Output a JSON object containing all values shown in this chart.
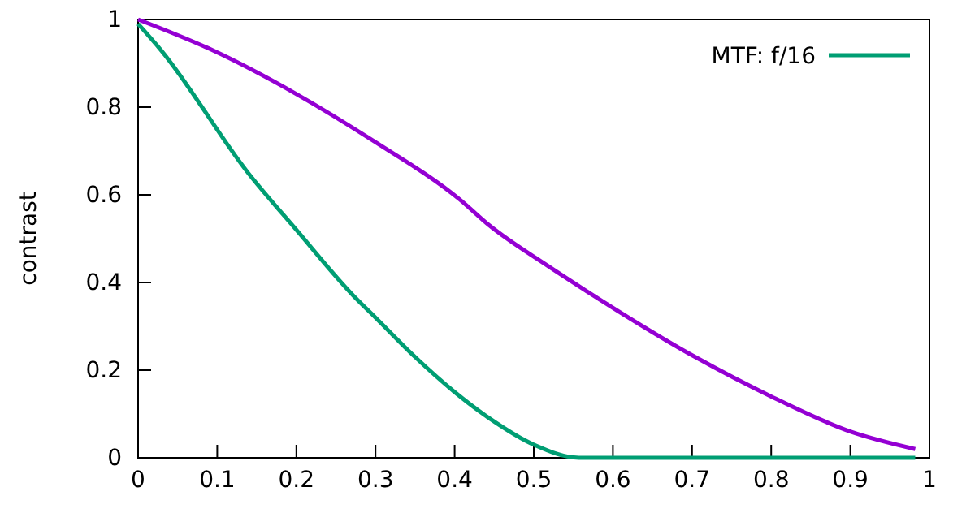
{
  "chart_data": {
    "type": "line",
    "ylabel": "contrast",
    "xlim": [
      0,
      1
    ],
    "ylim": [
      0,
      1
    ],
    "xticks": [
      0,
      0.1,
      0.2,
      0.3,
      0.4,
      0.5,
      0.6,
      0.7,
      0.8,
      0.9,
      1
    ],
    "yticks": [
      0,
      0.2,
      0.4,
      0.6,
      0.8,
      1
    ],
    "legend": "top right",
    "line_style": "solid",
    "series": [
      {
        "color": "#9400d3",
        "x": [
          0,
          0.094,
          0.2,
          0.3,
          0.406,
          0.444,
          0.516,
          0.567,
          0.704,
          0.8,
          0.9,
          0.982
        ],
        "values": [
          1,
          0.93,
          0.83,
          0.72,
          0.59,
          0.53,
          0.44,
          0.38,
          0.23,
          0.14,
          0.06,
          0.02
        ]
      },
      {
        "name": "MTF: f/16",
        "color": "#009e73",
        "x": [
          0,
          0.029,
          0.139,
          0.2,
          0.272,
          0.3,
          0.35,
          0.4,
          0.444,
          0.5,
          0.557,
          0.7,
          0.85,
          0.982
        ],
        "values": [
          0.99,
          0.93,
          0.65,
          0.52,
          0.37,
          0.32,
          0.23,
          0.15,
          0.09,
          0.03,
          0,
          0,
          0,
          0
        ]
      }
    ]
  }
}
